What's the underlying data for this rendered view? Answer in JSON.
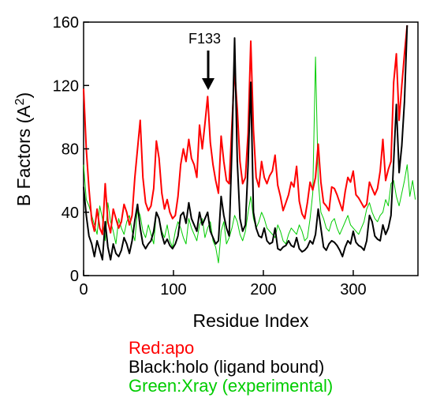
{
  "chart_data": {
    "type": "line",
    "xlabel": "Residue Index",
    "ylabel": "B Factors (A",
    "ylabel_sup": "2",
    "ylabel_close": ")",
    "xlim": [
      0,
      372
    ],
    "ylim": [
      0,
      160
    ],
    "x_ticks": [
      0,
      100,
      200,
      300
    ],
    "y_ticks": [
      0,
      40,
      80,
      120,
      160
    ],
    "x_tick_labels": [
      "0",
      "100",
      "200",
      "300"
    ],
    "y_tick_labels": [
      "0",
      "40",
      "80",
      "120",
      "160"
    ],
    "grid": false,
    "annotation": {
      "text": "F133",
      "x": 136,
      "y": 113
    },
    "series": [
      {
        "name": "Red:apo",
        "color": "#ff0000",
        "x": [
          0,
          3,
          6,
          9,
          12,
          15,
          18,
          21,
          24,
          27,
          30,
          33,
          36,
          39,
          42,
          45,
          48,
          51,
          54,
          57,
          60,
          63,
          66,
          69,
          72,
          75,
          78,
          81,
          84,
          87,
          90,
          93,
          96,
          99,
          102,
          105,
          108,
          111,
          114,
          117,
          120,
          123,
          126,
          129,
          132,
          135,
          138,
          141,
          144,
          147,
          150,
          153,
          156,
          159,
          162,
          165,
          168,
          171,
          174,
          177,
          180,
          183,
          186,
          189,
          192,
          195,
          198,
          201,
          204,
          207,
          210,
          213,
          216,
          219,
          222,
          225,
          228,
          231,
          234,
          237,
          240,
          243,
          246,
          249,
          252,
          255,
          258,
          261,
          264,
          267,
          270,
          273,
          276,
          279,
          282,
          285,
          288,
          291,
          294,
          297,
          300,
          303,
          306,
          309,
          312,
          315,
          318,
          321,
          324,
          327,
          330,
          333,
          336,
          339,
          342,
          345,
          348,
          351,
          354,
          357,
          360
        ],
        "y": [
          118,
          80,
          55,
          35,
          28,
          42,
          30,
          26,
          58,
          34,
          27,
          42,
          36,
          30,
          34,
          45,
          40,
          32,
          38,
          62,
          80,
          98,
          62,
          46,
          41,
          44,
          55,
          85,
          74,
          52,
          42,
          48,
          40,
          36,
          38,
          50,
          70,
          80,
          72,
          86,
          74,
          70,
          62,
          95,
          80,
          96,
          113,
          84,
          70,
          60,
          52,
          88,
          72,
          60,
          58,
          95,
          130,
          105,
          72,
          58,
          62,
          90,
          148,
          92,
          62,
          56,
          72,
          62,
          58,
          63,
          66,
          76,
          57,
          50,
          41,
          46,
          51,
          59,
          56,
          69,
          47,
          39,
          36,
          46,
          59,
          54,
          62,
          83,
          59,
          46,
          44,
          41,
          56,
          55,
          51,
          46,
          41,
          53,
          62,
          59,
          66,
          51,
          49,
          46,
          43,
          45,
          59,
          55,
          51,
          55,
          66,
          86,
          60,
          67,
          72,
          122,
          140,
          98,
          120,
          140,
          158
        ]
      },
      {
        "name": "Black:holo (ligand bound)",
        "color": "#000000",
        "x": [
          0,
          3,
          6,
          9,
          12,
          15,
          18,
          21,
          24,
          27,
          30,
          33,
          36,
          39,
          42,
          45,
          48,
          51,
          54,
          57,
          60,
          63,
          66,
          69,
          72,
          75,
          78,
          81,
          84,
          87,
          90,
          93,
          96,
          99,
          102,
          105,
          108,
          111,
          114,
          117,
          120,
          123,
          126,
          129,
          132,
          135,
          138,
          141,
          144,
          147,
          150,
          153,
          156,
          159,
          162,
          165,
          168,
          171,
          174,
          177,
          180,
          183,
          186,
          189,
          192,
          195,
          198,
          201,
          204,
          207,
          210,
          213,
          216,
          219,
          222,
          225,
          228,
          231,
          234,
          237,
          240,
          243,
          246,
          249,
          252,
          255,
          258,
          261,
          264,
          267,
          270,
          273,
          276,
          279,
          282,
          285,
          288,
          291,
          294,
          297,
          300,
          303,
          306,
          309,
          312,
          315,
          318,
          321,
          324,
          327,
          330,
          333,
          336,
          339,
          342,
          345,
          348,
          351,
          354,
          357,
          360
        ],
        "y": [
          56,
          38,
          25,
          20,
          12,
          22,
          16,
          10,
          34,
          18,
          10,
          20,
          14,
          12,
          16,
          24,
          20,
          14,
          22,
          35,
          45,
          30,
          20,
          17,
          20,
          22,
          28,
          40,
          36,
          26,
          20,
          23,
          19,
          17,
          20,
          25,
          38,
          40,
          33,
          46,
          36,
          32,
          28,
          40,
          32,
          36,
          40,
          28,
          24,
          20,
          22,
          50,
          38,
          30,
          25,
          80,
          150,
          72,
          36,
          28,
          32,
          70,
          122,
          40,
          30,
          25,
          24,
          30,
          22,
          20,
          21,
          30,
          17,
          16,
          18,
          19,
          22,
          19,
          18,
          24,
          17,
          15,
          16,
          18,
          22,
          20,
          26,
          42,
          30,
          18,
          16,
          20,
          22,
          21,
          19,
          16,
          12,
          18,
          22,
          20,
          28,
          21,
          19,
          18,
          16,
          22,
          38,
          34,
          25,
          23,
          22,
          32,
          26,
          30,
          38,
          72,
          108,
          65,
          82,
          110,
          158
        ]
      },
      {
        "name": "Green:Xray (experimental)",
        "color": "#00cc00",
        "x": [
          0,
          3,
          6,
          9,
          12,
          15,
          18,
          21,
          24,
          27,
          30,
          33,
          36,
          39,
          42,
          45,
          48,
          51,
          54,
          57,
          60,
          63,
          66,
          69,
          72,
          75,
          78,
          81,
          84,
          87,
          90,
          93,
          96,
          99,
          102,
          105,
          108,
          111,
          114,
          117,
          120,
          123,
          126,
          129,
          132,
          135,
          138,
          141,
          144,
          147,
          150,
          153,
          156,
          159,
          162,
          165,
          168,
          171,
          174,
          177,
          180,
          183,
          186,
          189,
          192,
          195,
          198,
          201,
          204,
          207,
          210,
          213,
          216,
          219,
          222,
          225,
          228,
          231,
          234,
          237,
          240,
          243,
          246,
          249,
          252,
          255,
          258,
          261,
          264,
          267,
          270,
          273,
          276,
          279,
          282,
          285,
          288,
          291,
          294,
          297,
          300,
          303,
          306,
          309,
          312,
          315,
          318,
          321,
          324,
          327,
          330,
          333,
          336,
          339,
          342,
          345,
          348,
          351,
          354,
          357,
          360,
          363,
          366,
          369
        ],
        "y": [
          70,
          48,
          44,
          38,
          32,
          26,
          44,
          36,
          22,
          46,
          34,
          28,
          20,
          36,
          30,
          26,
          34,
          38,
          28,
          22,
          42,
          38,
          28,
          24,
          32,
          26,
          20,
          40,
          36,
          28,
          24,
          32,
          22,
          18,
          28,
          34,
          30,
          24,
          20,
          36,
          30,
          26,
          22,
          32,
          36,
          24,
          30,
          34,
          22,
          18,
          8,
          28,
          34,
          20,
          24,
          30,
          38,
          34,
          26,
          22,
          28,
          40,
          50,
          36,
          30,
          34,
          40,
          36,
          30,
          28,
          26,
          24,
          32,
          28,
          22,
          20,
          26,
          30,
          28,
          26,
          32,
          28,
          22,
          24,
          36,
          52,
          138,
          60,
          40,
          36,
          30,
          28,
          34,
          36,
          30,
          26,
          30,
          34,
          38,
          32,
          30,
          28,
          26,
          30,
          34,
          42,
          46,
          40,
          36,
          34,
          38,
          40,
          48,
          44,
          58,
          60,
          50,
          44,
          52,
          60,
          70,
          50,
          60,
          48
        ]
      }
    ]
  }
}
